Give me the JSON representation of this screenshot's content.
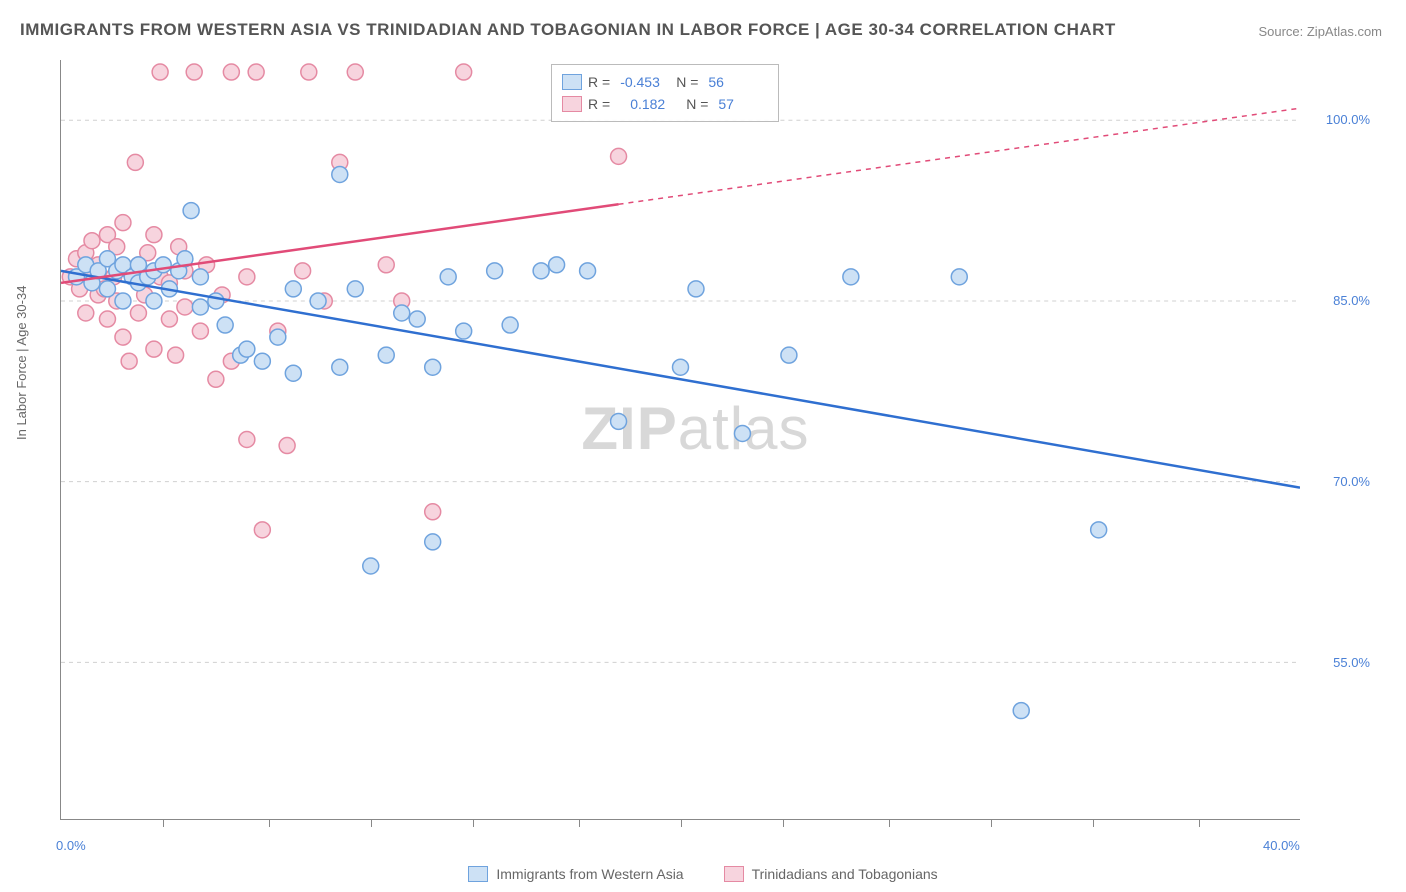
{
  "title": "IMMIGRANTS FROM WESTERN ASIA VS TRINIDADIAN AND TOBAGONIAN IN LABOR FORCE | AGE 30-34 CORRELATION CHART",
  "source": "Source: ZipAtlas.com",
  "y_axis_title": "In Labor Force | Age 30-34",
  "watermark_bold": "ZIP",
  "watermark_rest": "atlas",
  "chart": {
    "type": "scatter",
    "xlim": [
      0,
      40
    ],
    "ylim": [
      42,
      105
    ],
    "x_ticks": [
      0,
      40
    ],
    "x_tick_labels": [
      "0.0%",
      "40.0%"
    ],
    "x_minor_ticks": [
      3.3,
      6.7,
      10,
      13.3,
      16.7,
      20,
      23.3,
      26.7,
      30,
      33.3,
      36.7
    ],
    "y_ticks": [
      55,
      70,
      85,
      100
    ],
    "y_tick_labels": [
      "55.0%",
      "70.0%",
      "85.0%",
      "100.0%"
    ],
    "grid_color": "#d0d0d0",
    "background_color": "#ffffff",
    "series": [
      {
        "name": "Immigrants from Western Asia",
        "label": "Immigrants from Western Asia",
        "fill": "#cde1f5",
        "stroke": "#6fa3de",
        "line_color": "#2f6fd0",
        "marker_radius": 8,
        "R": "-0.453",
        "N": "56",
        "trend": {
          "x1": 0,
          "y1": 87.5,
          "x2": 40,
          "y2": 69.5,
          "dash_after_x": null
        },
        "points": [
          [
            0.5,
            87
          ],
          [
            0.8,
            88
          ],
          [
            1.0,
            86.5
          ],
          [
            1.2,
            87.5
          ],
          [
            1.5,
            88.5
          ],
          [
            1.5,
            86
          ],
          [
            1.8,
            87.5
          ],
          [
            2.0,
            88
          ],
          [
            2.0,
            85
          ],
          [
            2.3,
            87
          ],
          [
            2.5,
            86.5
          ],
          [
            2.5,
            88
          ],
          [
            2.8,
            87
          ],
          [
            3.0,
            85
          ],
          [
            3.0,
            87.5
          ],
          [
            3.3,
            88
          ],
          [
            3.5,
            86
          ],
          [
            3.8,
            87.5
          ],
          [
            4.0,
            88.5
          ],
          [
            4.2,
            92.5
          ],
          [
            4.5,
            84.5
          ],
          [
            4.5,
            87
          ],
          [
            5.0,
            85
          ],
          [
            5.3,
            83
          ],
          [
            5.8,
            80.5
          ],
          [
            6.0,
            81
          ],
          [
            6.5,
            80
          ],
          [
            7.0,
            82
          ],
          [
            7.5,
            86
          ],
          [
            7.5,
            79
          ],
          [
            8.3,
            85
          ],
          [
            9.0,
            95.5
          ],
          [
            9.0,
            79.5
          ],
          [
            9.5,
            86
          ],
          [
            10.0,
            63
          ],
          [
            10.5,
            80.5
          ],
          [
            11.0,
            84
          ],
          [
            11.5,
            83.5
          ],
          [
            12.0,
            65
          ],
          [
            12.0,
            79.5
          ],
          [
            12.5,
            87
          ],
          [
            13.0,
            82.5
          ],
          [
            14.0,
            87.5
          ],
          [
            14.5,
            83
          ],
          [
            15.5,
            87.5
          ],
          [
            16.0,
            88
          ],
          [
            17.0,
            87.5
          ],
          [
            18.0,
            75
          ],
          [
            20.0,
            79.5
          ],
          [
            20.5,
            86
          ],
          [
            22.0,
            74
          ],
          [
            23.5,
            80.5
          ],
          [
            25.5,
            87
          ],
          [
            29.0,
            87
          ],
          [
            31.0,
            51
          ],
          [
            33.5,
            66
          ]
        ]
      },
      {
        "name": "Trinidadians and Tobagonians",
        "label": "Trinidadians and Tobagonians",
        "fill": "#f7d4de",
        "stroke": "#e58aa3",
        "line_color": "#e14b78",
        "marker_radius": 8,
        "R": "0.182",
        "N": "57",
        "trend": {
          "x1": 0,
          "y1": 86.5,
          "x2": 40,
          "y2": 101,
          "dash_after_x": 18
        },
        "points": [
          [
            0.3,
            87
          ],
          [
            0.5,
            88.5
          ],
          [
            0.6,
            86
          ],
          [
            0.8,
            89
          ],
          [
            0.8,
            84
          ],
          [
            1.0,
            90
          ],
          [
            1.0,
            87
          ],
          [
            1.2,
            85.5
          ],
          [
            1.2,
            88
          ],
          [
            1.4,
            86
          ],
          [
            1.5,
            90.5
          ],
          [
            1.5,
            83.5
          ],
          [
            1.7,
            87
          ],
          [
            1.8,
            89.5
          ],
          [
            1.8,
            85
          ],
          [
            2.0,
            91.5
          ],
          [
            2.0,
            82
          ],
          [
            2.2,
            87.5
          ],
          [
            2.2,
            80
          ],
          [
            2.4,
            96.5
          ],
          [
            2.5,
            88
          ],
          [
            2.5,
            84
          ],
          [
            2.7,
            85.5
          ],
          [
            2.8,
            89
          ],
          [
            3.0,
            90.5
          ],
          [
            3.0,
            81
          ],
          [
            3.2,
            87
          ],
          [
            3.2,
            104
          ],
          [
            3.5,
            83.5
          ],
          [
            3.5,
            86.5
          ],
          [
            3.7,
            80.5
          ],
          [
            3.8,
            89.5
          ],
          [
            4.0,
            84.5
          ],
          [
            4.0,
            87.5
          ],
          [
            4.3,
            104
          ],
          [
            4.5,
            82.5
          ],
          [
            4.7,
            88
          ],
          [
            5.0,
            78.5
          ],
          [
            5.2,
            85.5
          ],
          [
            5.5,
            104
          ],
          [
            5.5,
            80
          ],
          [
            6.0,
            73.5
          ],
          [
            6.0,
            87
          ],
          [
            6.3,
            104
          ],
          [
            6.5,
            66
          ],
          [
            7.0,
            82.5
          ],
          [
            7.3,
            73
          ],
          [
            7.8,
            87.5
          ],
          [
            8.0,
            104
          ],
          [
            8.5,
            85
          ],
          [
            9.0,
            96.5
          ],
          [
            9.5,
            104
          ],
          [
            10.5,
            88
          ],
          [
            11.0,
            85
          ],
          [
            12.0,
            67.5
          ],
          [
            13.0,
            104
          ],
          [
            18.0,
            97
          ]
        ]
      }
    ],
    "legend_box": {
      "R_label": "R =",
      "N_label": "N ="
    },
    "bottom_legend": [
      {
        "series_idx": 0
      },
      {
        "series_idx": 1
      }
    ]
  },
  "colors": {
    "title": "#555555",
    "axis_text": "#4a80d6",
    "axis_title": "#666666",
    "border": "#888888"
  }
}
